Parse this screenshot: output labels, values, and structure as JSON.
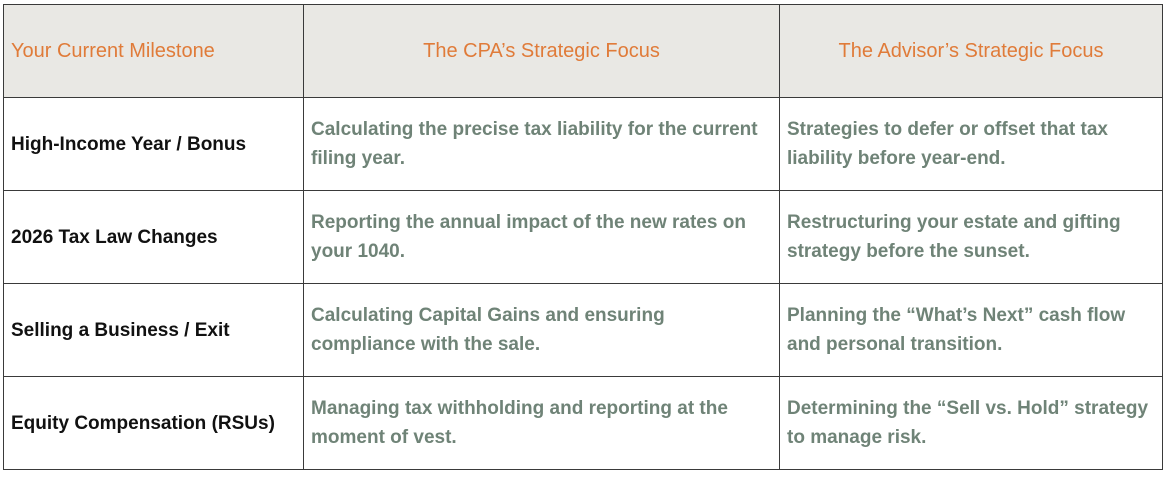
{
  "table": {
    "header": [
      "Your Current Milestone",
      "The CPA’s Strategic Focus",
      "The Advisor’s Strategic Focus"
    ],
    "rows": [
      [
        "High-Income Year / Bonus",
        "Calculating the precise tax liability for the current filing year.",
        "Strategies to defer or offset that tax liability before year-end."
      ],
      [
        "2026 Tax Law Changes",
        "Reporting the annual impact of the new rates on your 1040.",
        "Restructuring your estate and gifting strategy before the sunset."
      ],
      [
        "Selling a Business / Exit",
        "Calculating Capital Gains and ensuring compliance with the sale.",
        "Planning the “What’s Next” cash flow and personal transition."
      ],
      [
        "Equity Compensation (RSUs)",
        "Managing tax withholding and reporting at the moment of vest.",
        "Determining the “Sell vs. Hold” strategy to manage risk."
      ]
    ]
  }
}
